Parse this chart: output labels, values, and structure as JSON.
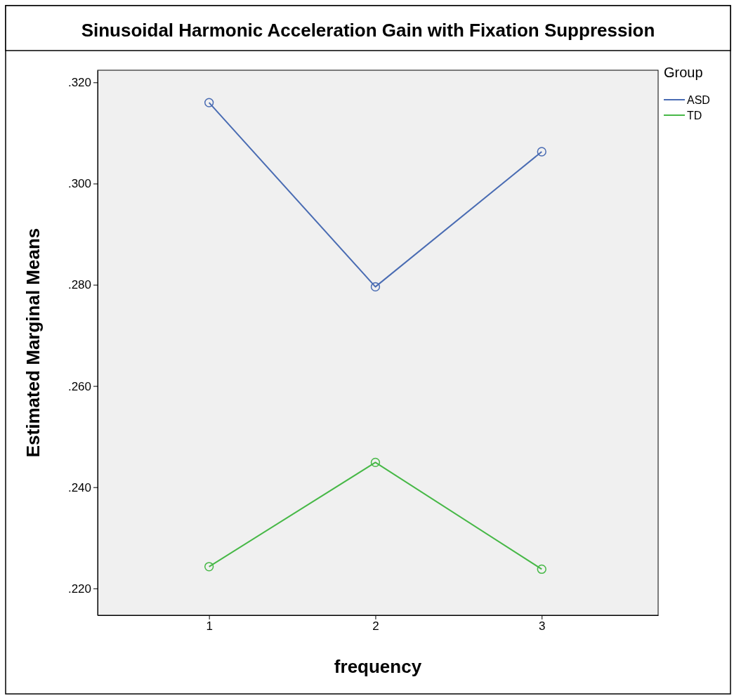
{
  "chart_data": {
    "type": "line",
    "title": "Sinusoidal Harmonic Acceleration Gain with Fixation Suppression",
    "xlabel": "frequency",
    "ylabel": "Estimated Marginal Means",
    "legend_title": "Group",
    "x": [
      1,
      2,
      3
    ],
    "series": [
      {
        "name": "ASD",
        "color": "#4a6cb3",
        "values": [
          0.316,
          0.2796,
          0.3063
        ]
      },
      {
        "name": "TD",
        "color": "#47b847",
        "values": [
          0.2243,
          0.2449,
          0.2238
        ]
      }
    ],
    "xlim": [
      0.33,
      3.7
    ],
    "xticks": [
      1,
      2,
      3
    ],
    "ylim": [
      0.2147,
      0.3224
    ],
    "yticks": [
      {
        "value": 0.22,
        "label": ".220"
      },
      {
        "value": 0.24,
        "label": ".240"
      },
      {
        "value": 0.26,
        "label": ".260"
      },
      {
        "value": 0.28,
        "label": ".280"
      },
      {
        "value": 0.3,
        "label": ".300"
      },
      {
        "value": 0.32,
        "label": ".320"
      }
    ],
    "legend": "top right",
    "marker": "circle",
    "line_style": "solid"
  }
}
